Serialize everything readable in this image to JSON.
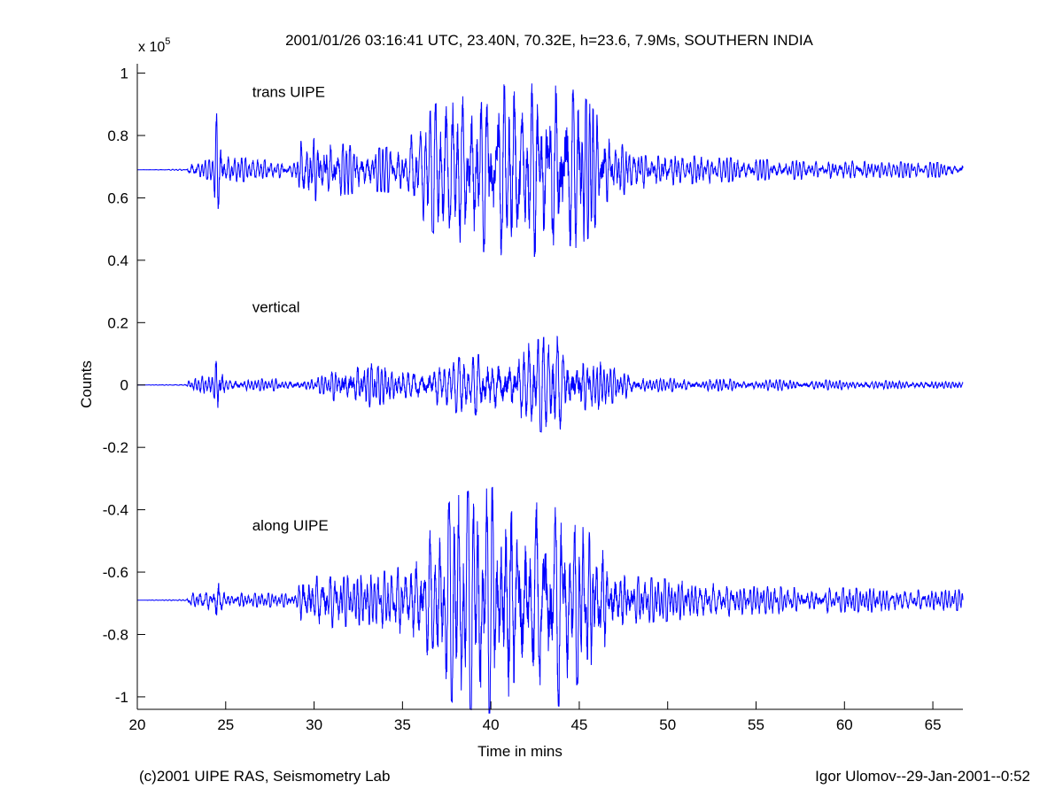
{
  "chart_data": {
    "type": "line",
    "title": "2001/01/26 03:16:41 UTC, 23.40N, 70.32E,  h=23.6, 7.9Ms, SOUTHERN INDIA",
    "xlabel": "Time in mins",
    "ylabel": "Counts",
    "y_exponent_label": "x 10",
    "y_exponent": "5",
    "xlim": [
      20,
      66.7
    ],
    "ylim": [
      -1.04,
      1.03
    ],
    "y_scale": 100000,
    "x_ticks": [
      20,
      25,
      30,
      35,
      40,
      45,
      50,
      55,
      60,
      65
    ],
    "y_ticks": [
      1,
      0.8,
      0.6,
      0.4,
      0.2,
      0,
      -0.2,
      -0.4,
      -0.6,
      -0.8,
      -1
    ],
    "grid": false,
    "line_color": "#0000ff",
    "series": [
      {
        "name": "trans UIPE",
        "baseline": 0.69,
        "label_time": 26.5,
        "label_value": 0.94,
        "envelope": [
          [
            20,
            0
          ],
          [
            22.8,
            0.002
          ],
          [
            22.9,
            0.02
          ],
          [
            24.3,
            0.03
          ],
          [
            24.5,
            0.17
          ],
          [
            24.9,
            0.04
          ],
          [
            28.9,
            0.02
          ],
          [
            29.3,
            0.1
          ],
          [
            33,
            0.06
          ],
          [
            35,
            0.07
          ],
          [
            37,
            0.2
          ],
          [
            39,
            0.22
          ],
          [
            40.5,
            0.27
          ],
          [
            42,
            0.25
          ],
          [
            44,
            0.26
          ],
          [
            45.5,
            0.2
          ],
          [
            47,
            0.08
          ],
          [
            49,
            0.05
          ],
          [
            55,
            0.03
          ],
          [
            66.7,
            0.02
          ]
        ]
      },
      {
        "name": "vertical",
        "baseline": 0.0,
        "label_time": 26.5,
        "label_value": 0.25,
        "envelope": [
          [
            20,
            0
          ],
          [
            22.8,
            0.002
          ],
          [
            22.9,
            0.02
          ],
          [
            24.3,
            0.03
          ],
          [
            24.5,
            0.08
          ],
          [
            25,
            0.02
          ],
          [
            30,
            0.015
          ],
          [
            32,
            0.07
          ],
          [
            35,
            0.05
          ],
          [
            38,
            0.08
          ],
          [
            41,
            0.1
          ],
          [
            43.5,
            0.15
          ],
          [
            45,
            0.1
          ],
          [
            47,
            0.05
          ],
          [
            49,
            0.02
          ],
          [
            66.7,
            0.01
          ]
        ]
      },
      {
        "name": "along UIPE",
        "baseline": -0.69,
        "label_time": 26.5,
        "label_value": -0.45,
        "envelope": [
          [
            20,
            0
          ],
          [
            22.8,
            0.002
          ],
          [
            22.9,
            0.02
          ],
          [
            24.3,
            0.03
          ],
          [
            24.5,
            0.08
          ],
          [
            25,
            0.02
          ],
          [
            29,
            0.02
          ],
          [
            29.3,
            0.09
          ],
          [
            33,
            0.07
          ],
          [
            35,
            0.1
          ],
          [
            36.5,
            0.2
          ],
          [
            38,
            0.31
          ],
          [
            40,
            0.33
          ],
          [
            42,
            0.3
          ],
          [
            44,
            0.31
          ],
          [
            45.5,
            0.2
          ],
          [
            48,
            0.07
          ],
          [
            55,
            0.04
          ],
          [
            66.7,
            0.03
          ]
        ]
      }
    ]
  },
  "footer": {
    "left": "(c)2001 UIPE RAS, Seismometry Lab",
    "right": "Igor Ulomov--29-Jan-2001--0:52"
  }
}
